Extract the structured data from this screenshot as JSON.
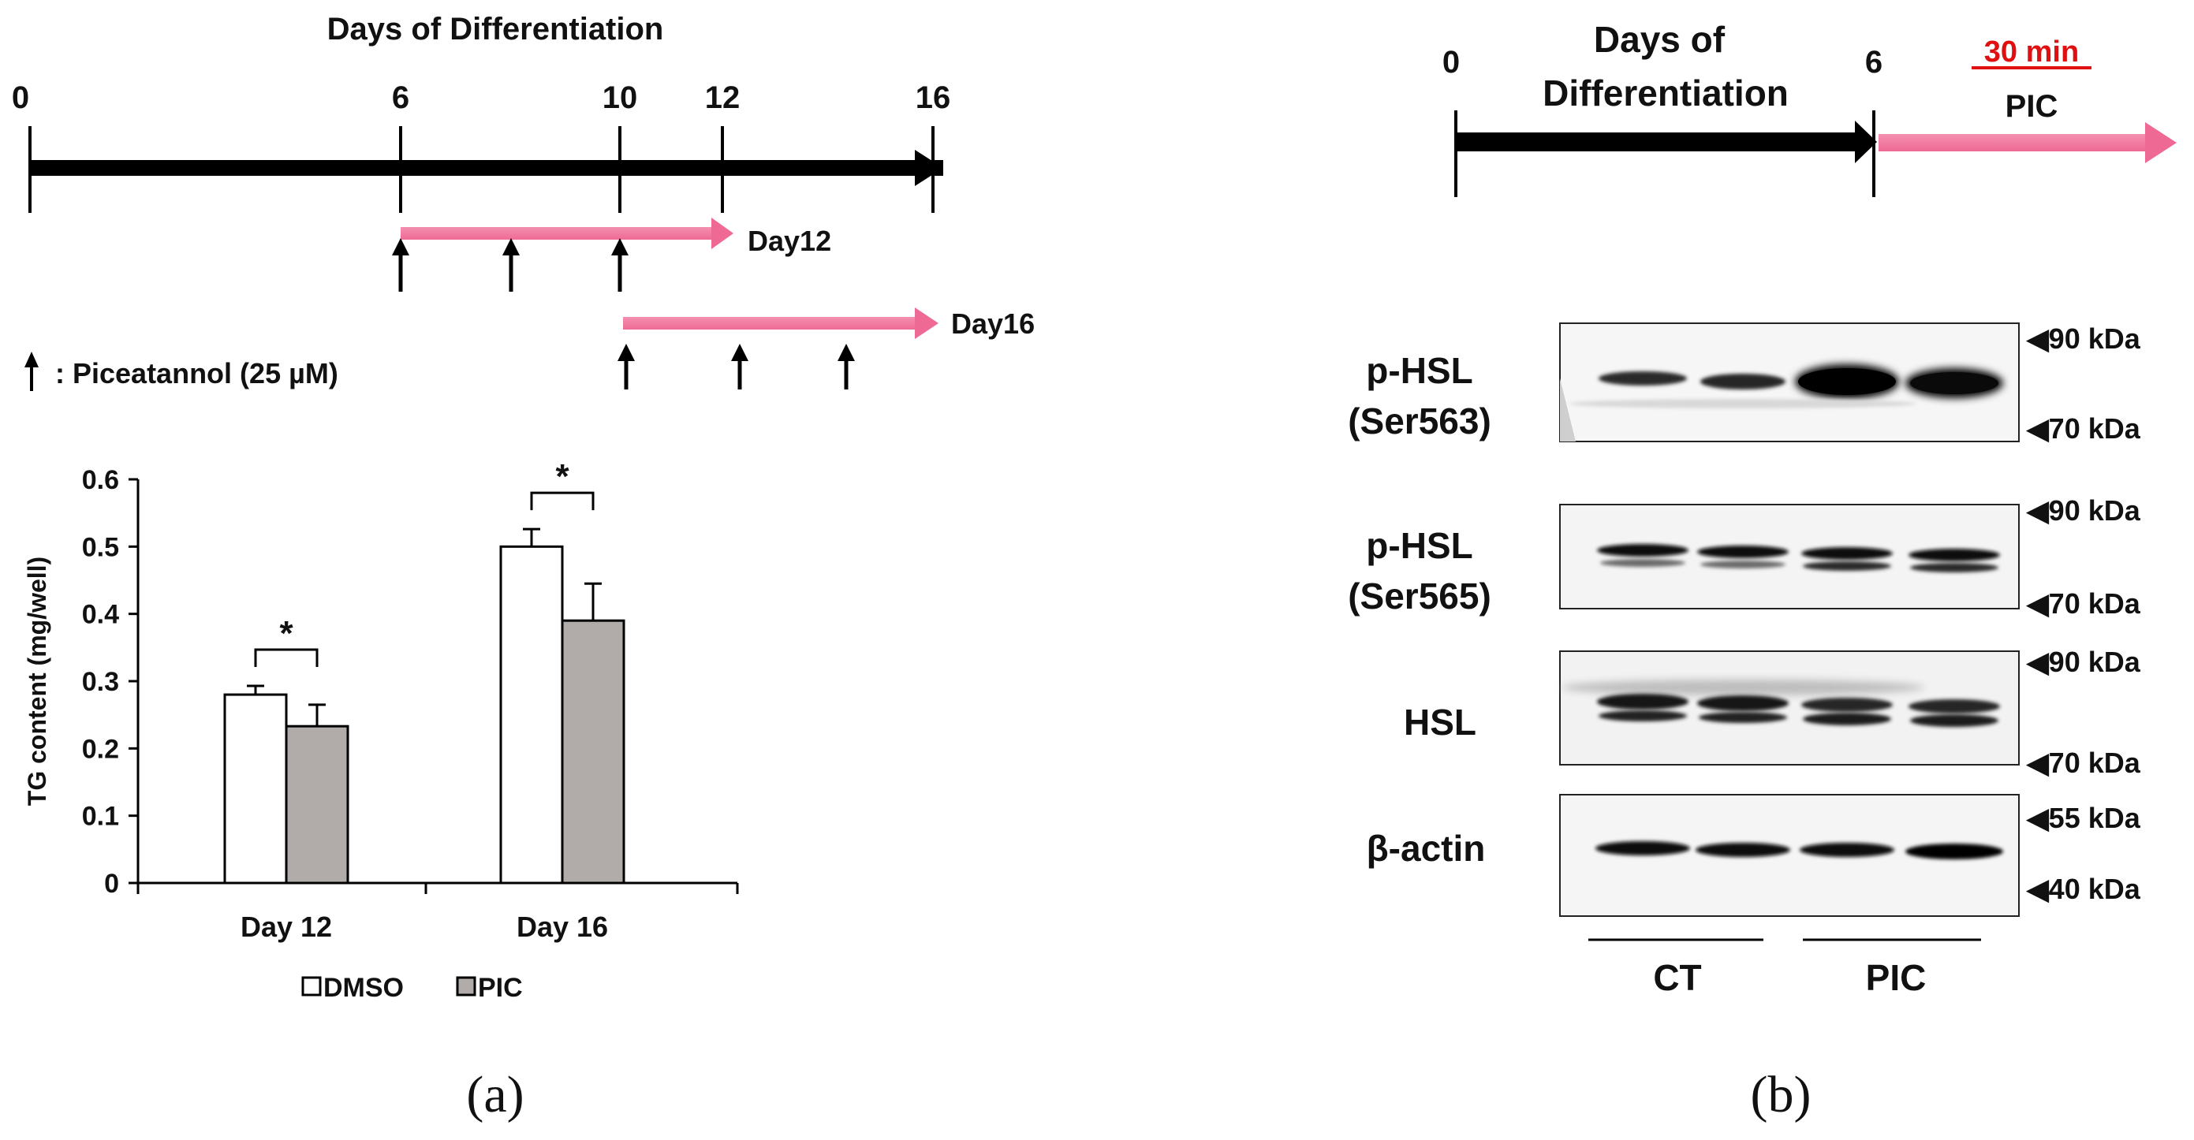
{
  "panel_a": {
    "label": "(a)",
    "timeline": {
      "title": "Days of Differentiation",
      "days": [
        "0",
        "6",
        "10",
        "12",
        "16"
      ],
      "treatments": [
        {
          "label": "Day12",
          "start_day": 6,
          "end_day": 12,
          "dose_days": [
            6,
            8,
            10
          ]
        },
        {
          "label": "Day16",
          "start_day": 10,
          "end_day": 16,
          "dose_days": [
            10,
            12,
            14
          ]
        }
      ],
      "legend_text": ": Piceatannol (25 µM)",
      "colors": {
        "main_arrow": "#000000",
        "treatment_arrow": "#f0739b"
      }
    }
  },
  "chart_data": {
    "type": "bar",
    "title": "",
    "xlabel": "",
    "ylabel": "TG content (mg/well)",
    "ylim": [
      0,
      0.6
    ],
    "yticks": [
      "0",
      "0.1",
      "0.2",
      "0.3",
      "0.4",
      "0.5",
      "0.6"
    ],
    "categories": [
      "Day 12",
      "Day 16"
    ],
    "series": [
      {
        "name": "DMSO",
        "values": [
          0.28,
          0.5
        ],
        "errors": [
          0.013,
          0.026
        ],
        "color": "#ffffff"
      },
      {
        "name": "PIC",
        "values": [
          0.233,
          0.39
        ],
        "errors": [
          0.032,
          0.055
        ],
        "color": "#b1aca9"
      }
    ],
    "significance": [
      "*",
      "*"
    ],
    "legend_placement": "bottom",
    "grid": false
  },
  "panel_b": {
    "label": "(b)",
    "timeline": {
      "start_day": "0",
      "end_day": "6",
      "title_line1": "Days of",
      "title_line2": "Differentiation",
      "treatment_time": "30 min",
      "treatment_label": "PIC",
      "colors": {
        "treatment_arrow": "#f0739b",
        "time_label": "#e01010"
      }
    },
    "blots": [
      {
        "label_line1": "p-HSL",
        "label_line2": "(Ser563)",
        "marker_top": "◀90 kDa",
        "marker_bottom": "◀70 kDa"
      },
      {
        "label_line1": "p-HSL",
        "label_line2": "(Ser565)",
        "marker_top": "◀90 kDa",
        "marker_bottom": "◀70 kDa"
      },
      {
        "label_line1": "HSL",
        "label_line2": "",
        "marker_top": "◀90 kDa",
        "marker_bottom": "◀70 kDa"
      },
      {
        "label_line1": "β-actin",
        "label_line2": "",
        "marker_top": "◀55 kDa",
        "marker_bottom": "◀40 kDa"
      }
    ],
    "groups": [
      "CT",
      "PIC"
    ]
  }
}
